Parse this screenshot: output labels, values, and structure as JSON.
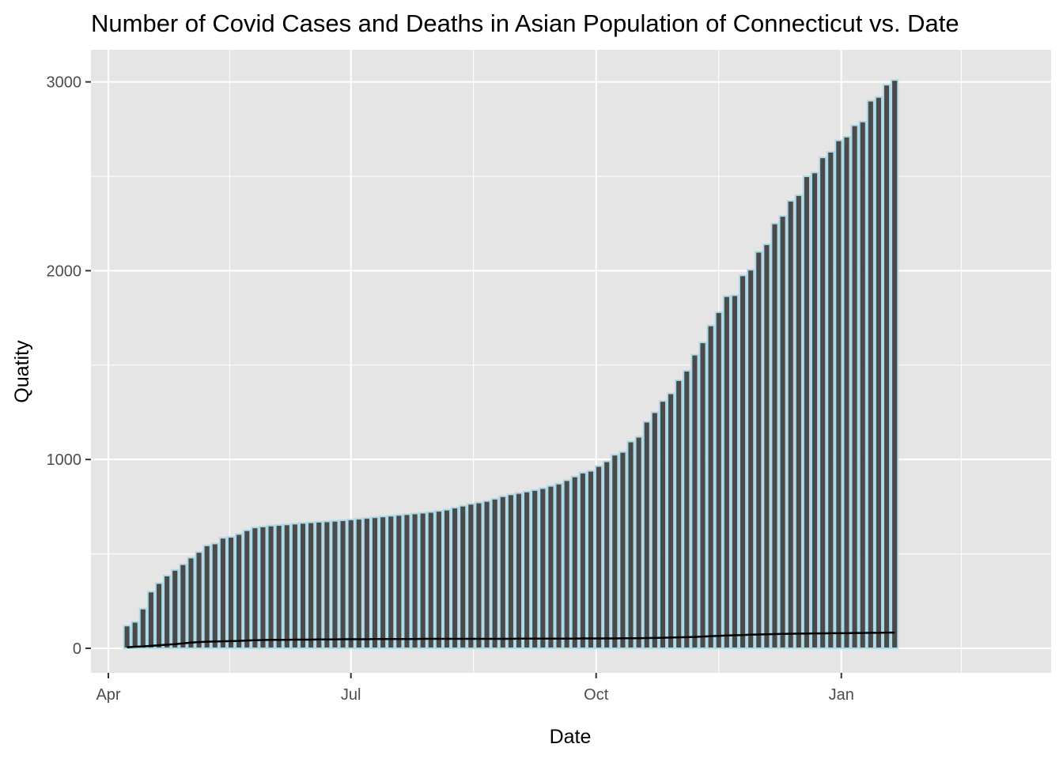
{
  "chart_data": {
    "type": "bar",
    "title": "Number of Covid Cases and Deaths in Asian Population of Connecticut vs. Date",
    "xlabel": "Date",
    "ylabel": "Quatity",
    "x_ticks": [
      "Apr",
      "Jul",
      "Oct",
      "Jan"
    ],
    "y_ticks": [
      0,
      1000,
      2000,
      3000
    ],
    "ylim": [
      -130,
      3170
    ],
    "start_date": "2020-04-08",
    "interval_days": 3,
    "colors": {
      "panel": "#e5e5e5",
      "grid": "#ffffff",
      "bar_fill": "#4a4a4a",
      "bar_outline": "#add8e6",
      "line": "#000000"
    },
    "series": [
      {
        "name": "Cases",
        "kind": "bar",
        "values": [
          120,
          140,
          210,
          300,
          345,
          385,
          415,
          445,
          480,
          510,
          545,
          555,
          585,
          590,
          605,
          625,
          640,
          645,
          650,
          653,
          656,
          660,
          664,
          667,
          670,
          672,
          675,
          678,
          682,
          686,
          690,
          694,
          698,
          702,
          706,
          710,
          714,
          718,
          722,
          728,
          734,
          745,
          755,
          765,
          772,
          780,
          792,
          805,
          815,
          822,
          830,
          838,
          848,
          860,
          872,
          890,
          910,
          930,
          940,
          965,
          990,
          1025,
          1040,
          1095,
          1120,
          1200,
          1250,
          1310,
          1350,
          1420,
          1470,
          1555,
          1620,
          1710,
          1780,
          1865,
          1870,
          1975,
          2005,
          2100,
          2140,
          2250,
          2290,
          2370,
          2400,
          2500,
          2520,
          2600,
          2630,
          2690,
          2710,
          2770,
          2790,
          2900,
          2920,
          2985,
          3010
        ]
      },
      {
        "name": "Deaths",
        "kind": "line",
        "values": [
          5,
          8,
          10,
          13,
          16,
          19,
          22,
          26,
          30,
          33,
          35,
          36,
          37,
          38,
          39,
          41,
          43,
          44,
          45,
          45,
          45,
          46,
          46,
          46,
          47,
          47,
          47,
          48,
          48,
          48,
          48,
          49,
          49,
          49,
          49,
          49,
          49,
          50,
          50,
          50,
          50,
          50,
          50,
          50,
          50,
          50,
          50,
          50,
          50,
          51,
          51,
          51,
          51,
          51,
          51,
          51,
          51,
          52,
          52,
          52,
          52,
          52,
          53,
          53,
          53,
          54,
          55,
          56,
          57,
          58,
          59,
          60,
          62,
          64,
          66,
          68,
          69,
          70,
          72,
          73,
          74,
          75,
          76,
          77,
          78,
          78,
          79,
          79,
          80,
          80,
          80,
          81,
          81,
          82,
          82,
          83,
          83
        ]
      }
    ]
  }
}
